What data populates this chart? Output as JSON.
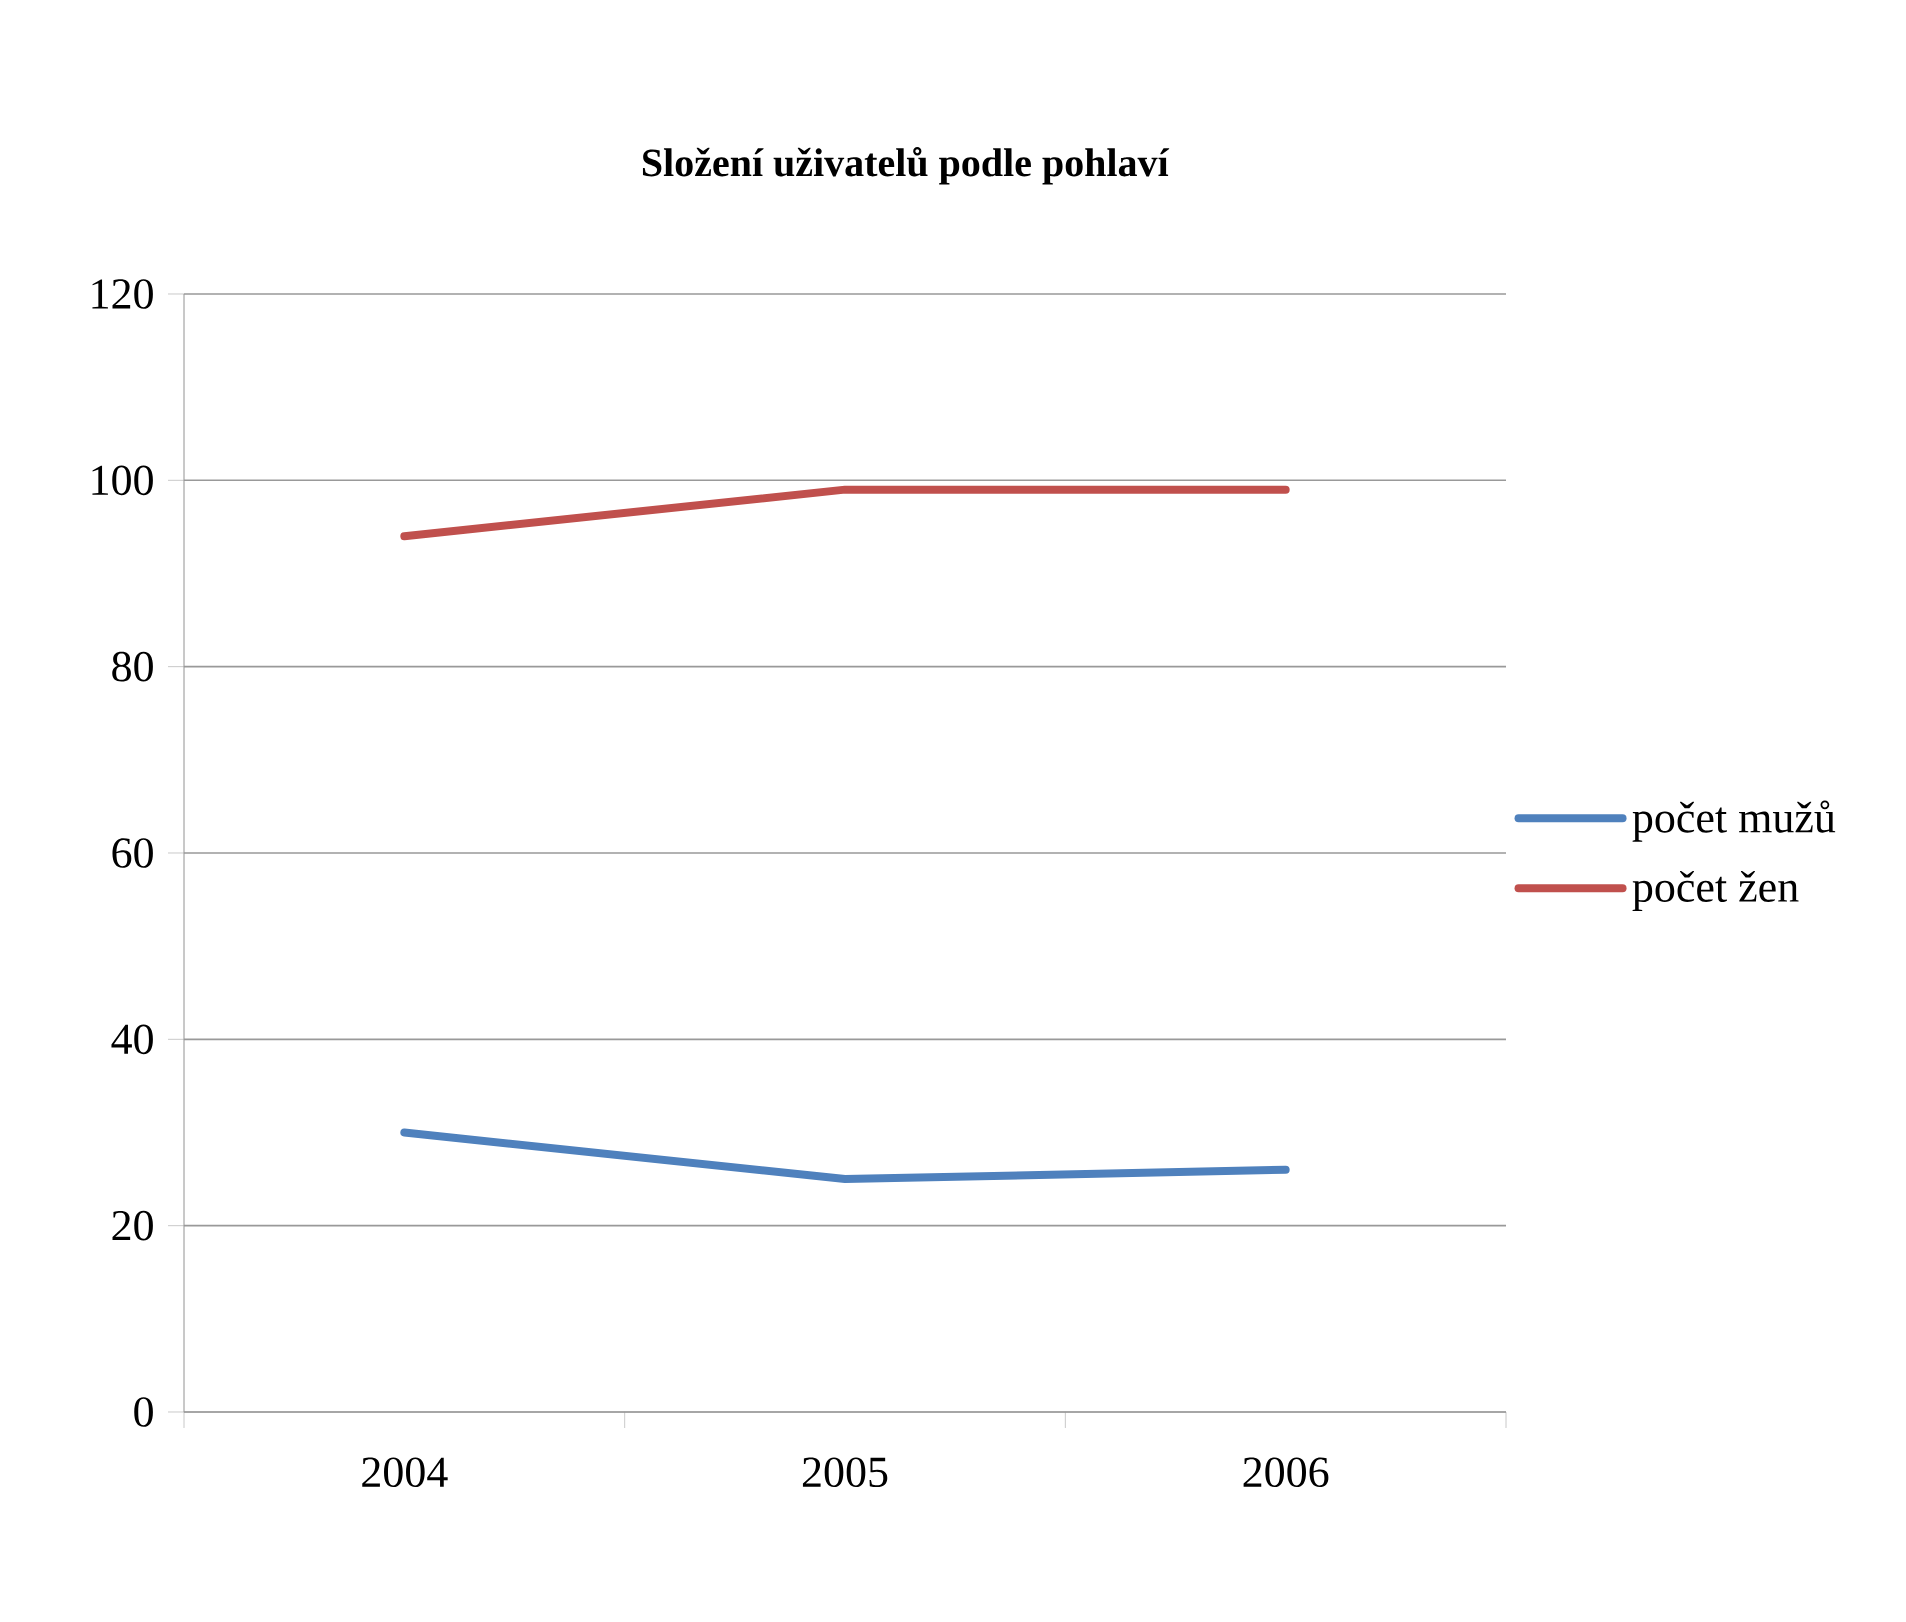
{
  "chart_data": {
    "type": "line",
    "title": "**Složení uživatelů podle pohlaví**",
    "categories": [
      "2004",
      "2005",
      "2006"
    ],
    "series": [
      {
        "name": "počet mužů",
        "color": "#4f81bd",
        "values": [
          30,
          25,
          26
        ]
      },
      {
        "name": "počet žen",
        "color": "#c0504d",
        "values": [
          94,
          99,
          99
        ]
      }
    ],
    "ylim": [
      0,
      120
    ],
    "yticks": [
      0,
      20,
      40,
      60,
      80,
      100,
      120
    ],
    "grid": "y",
    "legend": "right",
    "marker": "none",
    "line_style": "solid"
  }
}
